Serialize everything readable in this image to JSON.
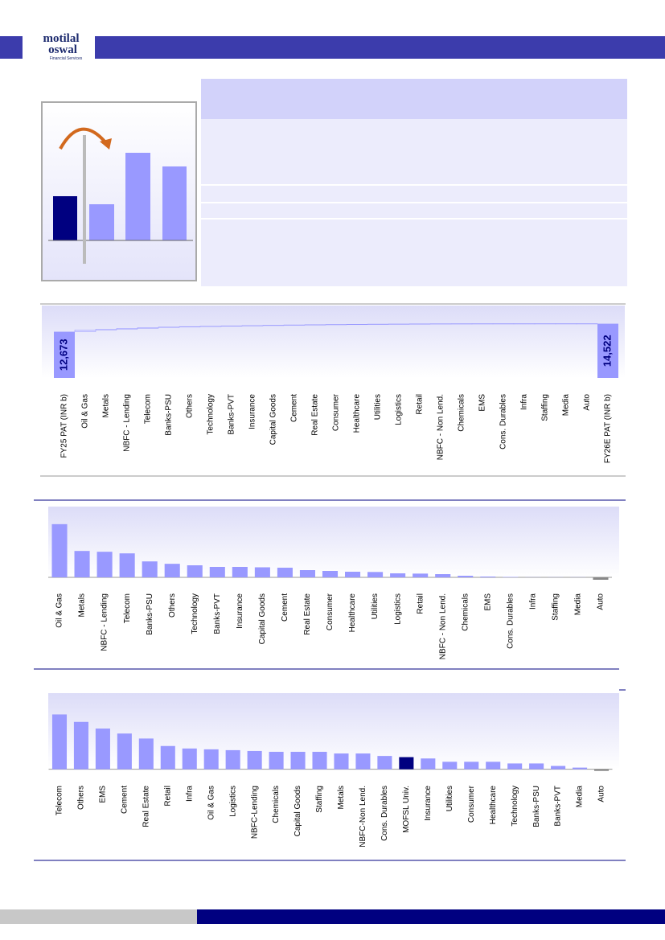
{
  "header": {
    "logo_top": "motilal",
    "logo_bottom": "oswal",
    "logo_sub": "Financial Services"
  },
  "chart_data": [
    {
      "type": "waterfall",
      "color": "#9999ff",
      "float_color": "#dcdcff",
      "label_color": "#000080",
      "categories": [
        "FY25 PAT (INR b)",
        "Oil & Gas",
        "Metals",
        "NBFC - Lending",
        "Telecom",
        "Banks-PSU",
        "Others",
        "Technology",
        "Banks-PVT",
        "Insurance",
        "Capital Goods",
        "Cement",
        "Real Estate",
        "Consumer",
        "Healthcare",
        "Utilities",
        "Logistics",
        "Retail",
        "NBFC - Non Lend.",
        "Chemicals",
        "EMS",
        "Cons. Durables",
        "Infra",
        "Staffing",
        "Media",
        "Auto",
        "FY26E PAT (INR b)"
      ],
      "values": [
        12673,
        397,
        197,
        191,
        179,
        119,
        101,
        90,
        78,
        78,
        75,
        72,
        54,
        48,
        42,
        40,
        30,
        28,
        24,
        12,
        6,
        3,
        1,
        1,
        1,
        -18,
        14522
      ],
      "value_labels": [
        "12,673",
        null,
        null,
        null,
        null,
        null,
        null,
        null,
        null,
        null,
        null,
        null,
        null,
        null,
        null,
        null,
        null,
        null,
        null,
        null,
        null,
        null,
        null,
        null,
        null,
        null,
        "14,522"
      ],
      "ylim": [
        2000,
        15000
      ]
    },
    {
      "type": "bar",
      "color": "#9999ff",
      "negative_color": "#888888",
      "categories": [
        "Oil & Gas",
        "Metals",
        "NBFC - Lending",
        "Telecom",
        "Banks-PSU",
        "Others",
        "Technology",
        "Banks-PVT",
        "Insurance",
        "Capital Goods",
        "Cement",
        "Real Estate",
        "Consumer",
        "Healthcare",
        "Utilities",
        "Logistics",
        "Retail",
        "NBFC - Non Lend.",
        "Chemicals",
        "EMS",
        "Cons. Durables",
        "Infra",
        "Staffing",
        "Media",
        "Auto"
      ],
      "values": [
        397,
        197,
        191,
        179,
        119,
        101,
        90,
        78,
        78,
        75,
        72,
        54,
        48,
        42,
        40,
        30,
        28,
        24,
        12,
        6,
        3,
        1,
        1,
        1,
        -18
      ],
      "ylim": [
        -60,
        450
      ]
    },
    {
      "type": "bar",
      "color": "#9999ff",
      "negative_color": "#888888",
      "highlight": {
        "category": "MOFSL Univ.",
        "color": "#000080"
      },
      "categories": [
        "Telecom",
        "Others",
        "EMS",
        "Cement",
        "Real Estate",
        "Retail",
        "Infra",
        "Oil & Gas",
        "Logistics",
        "NBFC-Lending",
        "Chemicals",
        "Capital Goods",
        "Staffing",
        "Metals",
        "NBFC-Non Lend.",
        "Cons. Durables",
        "MOFSL Univ.",
        "Insurance",
        "Utilities",
        "Consumer",
        "Healthcare",
        "Technology",
        "Banks-PSU",
        "Banks-PVT",
        "Media",
        "Auto"
      ],
      "values": [
        66,
        57,
        49,
        43,
        37,
        28,
        25,
        24,
        23,
        22,
        21,
        21,
        21,
        19,
        19,
        16,
        14.6,
        13,
        9,
        9,
        9,
        7,
        7,
        4,
        2,
        -2
      ],
      "ylim": [
        -10,
        80
      ]
    }
  ]
}
